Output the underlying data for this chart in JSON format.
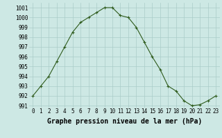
{
  "x": [
    0,
    1,
    2,
    3,
    4,
    5,
    6,
    7,
    8,
    9,
    10,
    11,
    12,
    13,
    14,
    15,
    16,
    17,
    18,
    19,
    20,
    21,
    22,
    23
  ],
  "y": [
    992.0,
    993.0,
    994.0,
    995.5,
    997.0,
    998.5,
    999.5,
    1000.0,
    1000.5,
    1001.0,
    1001.0,
    1000.2,
    1000.0,
    999.0,
    997.5,
    996.0,
    994.7,
    993.0,
    992.5,
    991.5,
    991.0,
    991.1,
    991.5,
    992.0
  ],
  "line_color": "#2d5a1b",
  "marker": "+",
  "bg_color": "#cde8e4",
  "grid_color": "#aaccc8",
  "xlabel": "Graphe pression niveau de la mer (hPa)",
  "ylim_min": 990.8,
  "ylim_max": 1001.5,
  "yticks": [
    991,
    992,
    993,
    994,
    995,
    996,
    997,
    998,
    999,
    1000,
    1001
  ],
  "xticks": [
    0,
    1,
    2,
    3,
    4,
    5,
    6,
    7,
    8,
    9,
    10,
    11,
    12,
    13,
    14,
    15,
    16,
    17,
    18,
    19,
    20,
    21,
    22,
    23
  ],
  "tick_fontsize": 5.5,
  "xlabel_fontsize": 7.0,
  "lw": 0.8,
  "markersize": 3.5,
  "markeredgewidth": 0.8
}
